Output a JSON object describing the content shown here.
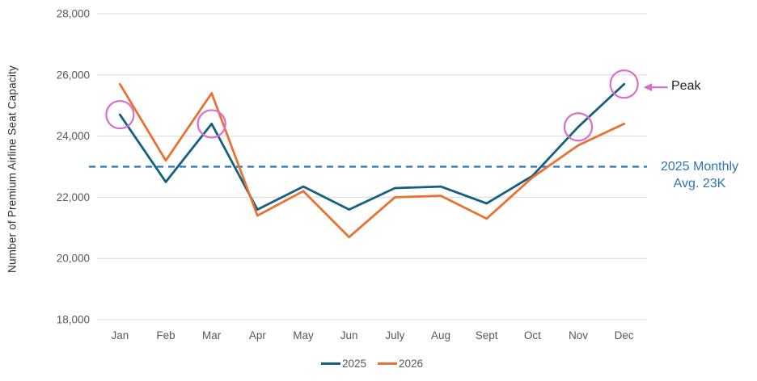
{
  "chart_data": {
    "type": "line",
    "ylabel": "Number of Premium Airline Seat Capacity",
    "categories": [
      "Jan",
      "Feb",
      "Mar",
      "Apr",
      "May",
      "Jun",
      "July",
      "Aug",
      "Sept",
      "Oct",
      "Nov",
      "Dec"
    ],
    "series": [
      {
        "name": "2025",
        "color": "#156082",
        "values": [
          24700,
          22500,
          24400,
          21600,
          22350,
          21600,
          22300,
          22350,
          21800,
          22700,
          24300,
          25700
        ]
      },
      {
        "name": "2026",
        "color": "#E97132",
        "values": [
          25700,
          23200,
          25400,
          21400,
          22200,
          20700,
          22000,
          22050,
          21300,
          22650,
          23700,
          24400
        ]
      }
    ],
    "ylim": [
      18000,
      28000
    ],
    "yticks": [
      18000,
      20000,
      22000,
      24000,
      26000,
      28000
    ],
    "ytick_labels": [
      "18,000",
      "20,000",
      "22,000",
      "24,000",
      "26,000",
      "28,000"
    ],
    "grid": true,
    "legend_position": "bottom",
    "avg_line": {
      "value": 23000,
      "color": "#2E75B6",
      "label": [
        "2025 Monthly",
        "Avg. 23K"
      ]
    },
    "highlights": {
      "series": "2025",
      "months": [
        "Jan",
        "Mar",
        "Nov",
        "Dec"
      ],
      "color": "#D86DCE",
      "radius": 17
    },
    "peak_annotation": {
      "label": "Peak",
      "month": "Dec",
      "series": "2025",
      "arrow_color": "#D86DCE"
    },
    "colors": {
      "gridline": "#D9D9D9",
      "tick_text": "#595959"
    }
  }
}
